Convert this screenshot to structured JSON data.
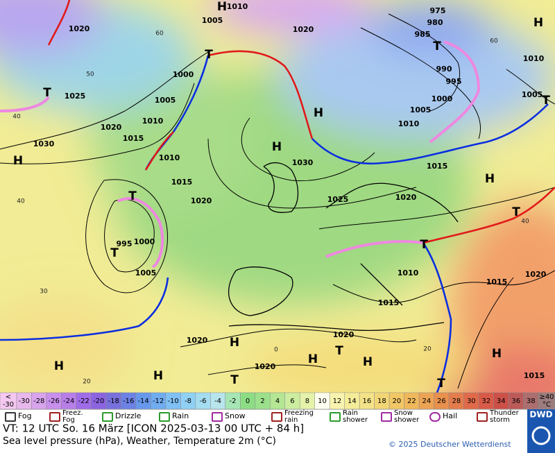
{
  "map": {
    "isobar_labels": [
      "1010",
      "1005",
      "1020",
      "1020",
      "975",
      "980",
      "985",
      "990",
      "995",
      "1000",
      "1005",
      "1010",
      "1025",
      "1000",
      "1005",
      "1010",
      "1020",
      "1015",
      "1030",
      "1010",
      "1015",
      "1020",
      "1030",
      "1025",
      "1020",
      "1015",
      "1010",
      "1005",
      "995",
      "1000",
      "1005",
      "1010",
      "1015",
      "1015",
      "1020",
      "1020",
      "1020",
      "1020",
      "1015"
    ],
    "grid_labels": [
      "60",
      "50",
      "40",
      "40",
      "30",
      "20",
      "0",
      "20",
      "40",
      "60"
    ],
    "highs": [
      "H",
      "H",
      "H",
      "H",
      "H",
      "H",
      "H",
      "H",
      "H",
      "H",
      "H",
      "H"
    ],
    "lows": [
      "T",
      "T",
      "T",
      "T",
      "T",
      "T",
      "T",
      "T",
      "T",
      "T",
      "T"
    ]
  },
  "temperature_scale": {
    "lowest": [
      "<",
      "-30"
    ],
    "steps": [
      "-30",
      "-28",
      "-26",
      "-24",
      "-22",
      "-20",
      "-18",
      "-16",
      "-14",
      "-12",
      "-10",
      "-8",
      "-6",
      "-4",
      "-2",
      "0",
      "2",
      "4",
      "6",
      "8",
      "10",
      "12",
      "14",
      "16",
      "18",
      "20",
      "22",
      "24",
      "26",
      "28",
      "30",
      "32",
      "34",
      "36",
      "38"
    ],
    "highest": [
      "≥40",
      "°C"
    ]
  },
  "legend": {
    "items": [
      [
        "Fog"
      ],
      [
        "Freez.",
        "Fog"
      ],
      [
        "Drizzle"
      ],
      [
        "Rain"
      ],
      [
        "Snow"
      ],
      [
        "Freezing",
        "rain"
      ],
      [
        "Rain",
        "shower"
      ],
      [
        "Snow",
        "shower"
      ],
      [
        "Hail"
      ],
      [
        "Thunder",
        "storm"
      ]
    ]
  },
  "footer": {
    "valid_time": "VT: 12 UTC So.  16 März [ICON 2025-03-13  00 UTC + 84 h]",
    "description": "Sea level pressure (hPa), Weather, Temperature 2m (°C)",
    "copyright": "© 2025 Deutscher Wetterdienst",
    "logo": "DWD"
  }
}
